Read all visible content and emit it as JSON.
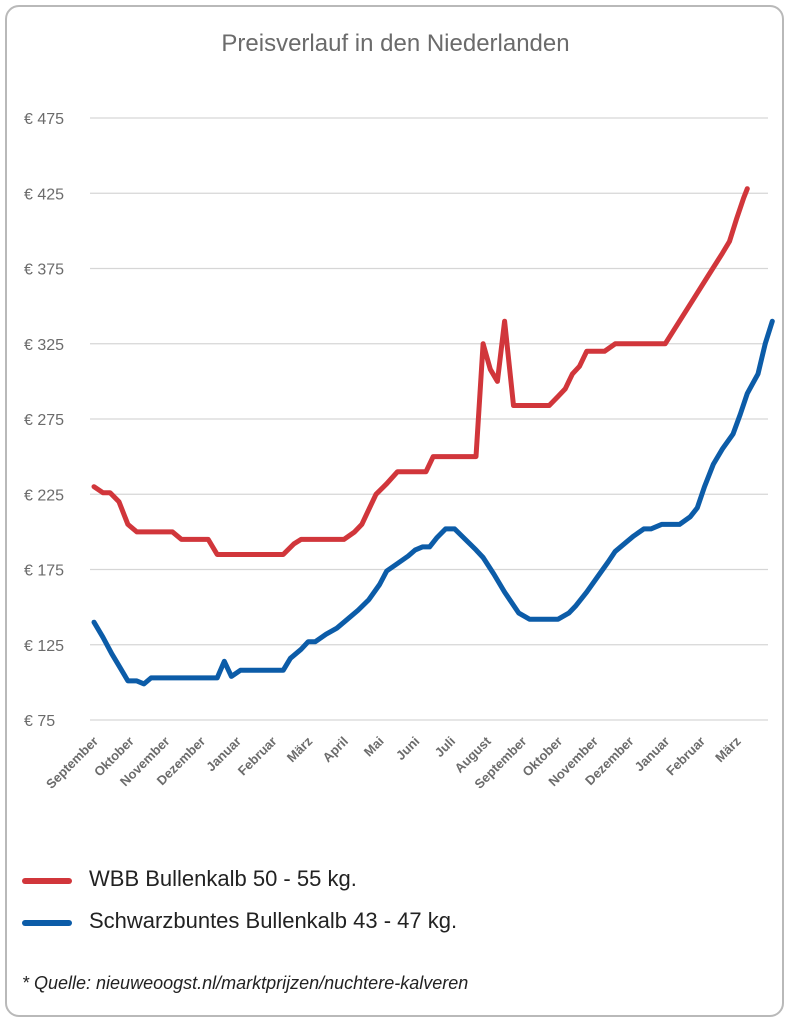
{
  "chart_data": {
    "type": "line",
    "title": "Preisverlauf in den Niederlanden",
    "ylim": [
      75,
      475
    ],
    "yticks": [
      "€ 475",
      "€ 425",
      "€ 375",
      "€ 325",
      "€ 275",
      "€ 225",
      "€ 175",
      "€ 125",
      "€ 75"
    ],
    "ytick_values": [
      475,
      425,
      375,
      325,
      275,
      225,
      175,
      125,
      75
    ],
    "grid": true,
    "legend_position": "bottom",
    "categories": [
      "September",
      "Oktober",
      "November",
      "Dezember",
      "Januar",
      "Februar",
      "März",
      "April",
      "Mai",
      "Juni",
      "Juli",
      "August",
      "September",
      "Oktober",
      "November",
      "Dezember",
      "Januar",
      "Februar",
      "März"
    ],
    "series": [
      {
        "name": "WBB Bullenkalb 50 - 55 kg.",
        "color": "#d1363b",
        "points": [
          [
            0,
            230
          ],
          [
            0.25,
            226
          ],
          [
            0.45,
            226
          ],
          [
            0.7,
            220
          ],
          [
            0.95,
            205
          ],
          [
            1.2,
            200
          ],
          [
            1.5,
            200
          ],
          [
            1.8,
            200
          ],
          [
            2.2,
            200
          ],
          [
            2.45,
            195
          ],
          [
            2.8,
            195
          ],
          [
            3.2,
            195
          ],
          [
            3.45,
            185
          ],
          [
            3.8,
            185
          ],
          [
            4.2,
            185
          ],
          [
            4.6,
            185
          ],
          [
            5.0,
            185
          ],
          [
            5.3,
            185
          ],
          [
            5.6,
            192
          ],
          [
            5.8,
            195
          ],
          [
            6.2,
            195
          ],
          [
            6.6,
            195
          ],
          [
            7.0,
            195
          ],
          [
            7.3,
            200
          ],
          [
            7.5,
            205
          ],
          [
            7.7,
            215
          ],
          [
            7.9,
            225
          ],
          [
            8.2,
            232
          ],
          [
            8.5,
            240
          ],
          [
            9.0,
            240
          ],
          [
            9.3,
            240
          ],
          [
            9.5,
            250
          ],
          [
            9.9,
            250
          ],
          [
            10.3,
            250
          ],
          [
            10.7,
            250
          ],
          [
            10.9,
            325
          ],
          [
            11.1,
            308
          ],
          [
            11.3,
            300
          ],
          [
            11.5,
            340
          ],
          [
            11.75,
            284
          ],
          [
            12.0,
            284
          ],
          [
            12.5,
            284
          ],
          [
            12.75,
            284
          ],
          [
            13.0,
            290
          ],
          [
            13.2,
            295
          ],
          [
            13.4,
            305
          ],
          [
            13.6,
            310
          ],
          [
            13.8,
            320
          ],
          [
            14.0,
            320
          ],
          [
            14.3,
            320
          ],
          [
            14.6,
            325
          ],
          [
            15.0,
            325
          ],
          [
            15.4,
            325
          ],
          [
            15.8,
            325
          ],
          [
            16.0,
            325
          ],
          [
            16.4,
            340
          ],
          [
            16.8,
            355
          ],
          [
            17.2,
            370
          ],
          [
            17.6,
            385
          ],
          [
            17.8,
            393
          ],
          [
            18.0,
            408
          ],
          [
            18.2,
            422
          ],
          [
            18.3,
            428
          ]
        ]
      },
      {
        "name": "Schwarzbuntes Bullenkalb 43 - 47 kg.",
        "color": "#0c5ca8",
        "points": [
          [
            0,
            140
          ],
          [
            0.25,
            130
          ],
          [
            0.5,
            119
          ],
          [
            0.7,
            111
          ],
          [
            0.95,
            101
          ],
          [
            1.2,
            101
          ],
          [
            1.4,
            99
          ],
          [
            1.6,
            103
          ],
          [
            1.9,
            103
          ],
          [
            2.3,
            103
          ],
          [
            2.7,
            103
          ],
          [
            3.1,
            103
          ],
          [
            3.45,
            103
          ],
          [
            3.65,
            114
          ],
          [
            3.85,
            104
          ],
          [
            4.1,
            108
          ],
          [
            4.5,
            108
          ],
          [
            4.9,
            108
          ],
          [
            5.3,
            108
          ],
          [
            5.5,
            116
          ],
          [
            5.8,
            122
          ],
          [
            6.0,
            127
          ],
          [
            6.2,
            127
          ],
          [
            6.5,
            132
          ],
          [
            6.8,
            136
          ],
          [
            7.1,
            142
          ],
          [
            7.4,
            148
          ],
          [
            7.7,
            155
          ],
          [
            8.0,
            165
          ],
          [
            8.2,
            174
          ],
          [
            8.5,
            179
          ],
          [
            8.8,
            184
          ],
          [
            9.0,
            188
          ],
          [
            9.2,
            190
          ],
          [
            9.4,
            190
          ],
          [
            9.6,
            196
          ],
          [
            9.85,
            202
          ],
          [
            10.1,
            202
          ],
          [
            10.4,
            195
          ],
          [
            10.7,
            188
          ],
          [
            10.9,
            183
          ],
          [
            11.2,
            172
          ],
          [
            11.5,
            160
          ],
          [
            11.9,
            146
          ],
          [
            12.2,
            142
          ],
          [
            12.5,
            142
          ],
          [
            12.8,
            142
          ],
          [
            13.0,
            142
          ],
          [
            13.3,
            146
          ],
          [
            13.5,
            151
          ],
          [
            13.8,
            160
          ],
          [
            14.1,
            170
          ],
          [
            14.4,
            180
          ],
          [
            14.6,
            187
          ],
          [
            14.9,
            193
          ],
          [
            15.1,
            197
          ],
          [
            15.4,
            202
          ],
          [
            15.6,
            202
          ],
          [
            15.9,
            205
          ],
          [
            16.1,
            205
          ],
          [
            16.4,
            205
          ],
          [
            16.7,
            210
          ],
          [
            16.9,
            216
          ],
          [
            17.1,
            230
          ],
          [
            17.35,
            245
          ],
          [
            17.6,
            255
          ],
          [
            17.9,
            265
          ],
          [
            18.1,
            278
          ],
          [
            18.3,
            292
          ],
          [
            18.6,
            305
          ],
          [
            18.8,
            325
          ],
          [
            19.0,
            340
          ]
        ]
      }
    ]
  },
  "legend": {
    "items": [
      {
        "label": "WBB Bullenkalb 50 - 55 kg.",
        "color": "#d1363b"
      },
      {
        "label": "Schwarzbuntes Bullenkalb 43 - 47 kg.",
        "color": "#0c5ca8"
      }
    ]
  },
  "source": "* Quelle: nieuweoogst.nl/marktprijzen/nuchtere-kalveren"
}
